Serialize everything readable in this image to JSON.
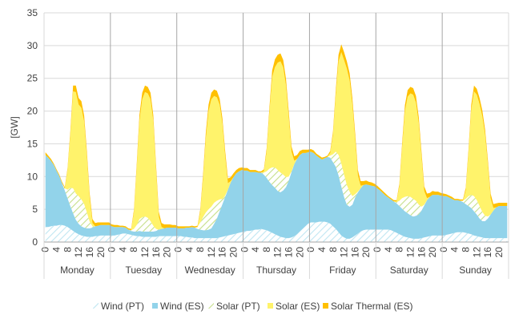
{
  "chart_data": {
    "type": "area",
    "title": "",
    "xlabel": "",
    "ylabel": "[GW]",
    "ylim": [
      0,
      35
    ],
    "yticks": [
      0,
      5,
      10,
      15,
      20,
      25,
      30,
      35
    ],
    "grid": true,
    "legend_position": "bottom",
    "hour_labels": [
      "0",
      "4",
      "8",
      "12",
      "16",
      "20"
    ],
    "days": [
      "Monday",
      "Tuesday",
      "Wednesday",
      "Thursday",
      "Friday",
      "Saturday",
      "Sunday"
    ],
    "colors": {
      "wind_pt": "#bfe6f2",
      "wind_es": "#92d3ea",
      "solar_pt": "#c5df8a",
      "solar_es": "#fff36b",
      "solar_thermal_es": "#ffc000",
      "grid": "#d9d9d9",
      "axis": "#a6a6a6"
    },
    "series": [
      {
        "name": "Wind (PT)",
        "pattern": "hatch",
        "values": [
          [
            2.3,
            2.3,
            2.4,
            2.5,
            2.5,
            2.6,
            2.6,
            2.5,
            2.3,
            2.0,
            1.7,
            1.4,
            1.2,
            1.0,
            0.9,
            0.8,
            0.8,
            0.8,
            0.9,
            0.9,
            1.0,
            1.0,
            1.0,
            1.0
          ],
          [
            1.0,
            1.0,
            1.1,
            1.2,
            1.3,
            1.3,
            1.2,
            1.1,
            1.0,
            0.9,
            0.9,
            0.8,
            0.8,
            0.8,
            0.8,
            0.8,
            0.8,
            0.9,
            0.9,
            0.9,
            0.9,
            0.9,
            0.9,
            0.9
          ],
          [
            0.9,
            0.9,
            0.8,
            0.8,
            0.7,
            0.7,
            0.6,
            0.6,
            0.6,
            0.6,
            0.6,
            0.6,
            0.6,
            0.6,
            0.6,
            0.7,
            0.8,
            0.9,
            1.0,
            1.1,
            1.2,
            1.3,
            1.4,
            1.5
          ],
          [
            1.6,
            1.7,
            1.7,
            1.8,
            1.9,
            1.9,
            2.0,
            1.9,
            1.8,
            1.6,
            1.4,
            1.2,
            1.0,
            0.8,
            0.7,
            0.6,
            0.6,
            0.7,
            0.9,
            1.2,
            1.6,
            2.0,
            2.4,
            2.8
          ],
          [
            3.0,
            3.0,
            3.0,
            3.1,
            3.1,
            3.1,
            3.0,
            2.8,
            2.4,
            2.0,
            1.5,
            1.0,
            0.7,
            0.5,
            0.5,
            0.7,
            1.0,
            1.3,
            1.6,
            1.8,
            1.9,
            1.9,
            1.9,
            1.9
          ],
          [
            1.9,
            1.9,
            1.9,
            1.9,
            1.9,
            1.8,
            1.6,
            1.4,
            1.2,
            1.0,
            0.8,
            0.7,
            0.6,
            0.5,
            0.5,
            0.5,
            0.6,
            0.7,
            0.8,
            0.9,
            1.0,
            1.0,
            1.0,
            1.0
          ],
          [
            1.0,
            1.1,
            1.2,
            1.3,
            1.4,
            1.5,
            1.5,
            1.5,
            1.4,
            1.3,
            1.2,
            1.0,
            0.9,
            0.8,
            0.7,
            0.6,
            0.6,
            0.6,
            0.6,
            0.6,
            0.6,
            0.6,
            0.6,
            0.6
          ]
        ]
      },
      {
        "name": "Wind (ES)",
        "pattern": "solid",
        "values": [
          [
            11.0,
            10.6,
            10.0,
            9.3,
            8.4,
            7.5,
            6.4,
            5.4,
            4.4,
            3.5,
            2.7,
            2.0,
            1.6,
            1.4,
            1.3,
            1.3,
            1.3,
            1.4,
            1.5,
            1.6,
            1.6,
            1.6,
            1.6,
            1.6
          ],
          [
            1.4,
            1.3,
            1.2,
            1.1,
            1.0,
            0.9,
            0.7,
            0.6,
            0.6,
            0.7,
            0.8,
            0.8,
            0.8,
            0.8,
            0.8,
            0.8,
            0.9,
            1.0,
            1.1,
            1.2,
            1.3,
            1.3,
            1.3,
            1.3
          ],
          [
            1.2,
            1.2,
            1.3,
            1.4,
            1.5,
            1.6,
            1.6,
            1.4,
            1.3,
            1.2,
            1.2,
            1.3,
            1.5,
            2.2,
            3.0,
            4.0,
            5.0,
            6.0,
            7.0,
            8.0,
            8.7,
            9.2,
            9.4,
            9.5
          ],
          [
            9.3,
            9.2,
            9.0,
            8.9,
            8.8,
            8.7,
            8.6,
            8.4,
            8.0,
            7.6,
            7.3,
            7.1,
            6.8,
            6.8,
            7.2,
            7.8,
            8.8,
            10.0,
            11.0,
            11.5,
            11.7,
            11.6,
            11.2,
            10.9
          ],
          [
            10.8,
            10.6,
            10.2,
            9.8,
            9.5,
            9.7,
            10.0,
            10.1,
            9.8,
            9.5,
            8.7,
            7.5,
            6.2,
            5.2,
            4.9,
            5.0,
            5.8,
            6.3,
            6.6,
            6.9,
            6.9,
            6.8,
            6.7,
            6.6
          ],
          [
            6.3,
            6.0,
            5.6,
            5.2,
            4.9,
            4.7,
            4.6,
            4.5,
            4.3,
            4.1,
            3.9,
            3.7,
            3.5,
            3.4,
            3.5,
            3.7,
            4.2,
            4.9,
            5.6,
            6.0,
            6.2,
            6.2,
            6.2,
            6.1
          ],
          [
            6.0,
            5.9,
            5.6,
            5.3,
            5.0,
            4.9,
            4.8,
            4.6,
            4.4,
            4.2,
            4.0,
            3.7,
            3.3,
            2.8,
            2.5,
            2.6,
            3.0,
            3.6,
            4.2,
            4.7,
            4.9,
            4.9,
            4.9,
            4.9
          ]
        ]
      },
      {
        "name": "Solar (PT)",
        "pattern": "hatch",
        "values": [
          [
            0,
            0,
            0,
            0,
            0,
            0,
            0,
            0.3,
            1.3,
            2.8,
            3.8,
            4.0,
            4.2,
            4.1,
            3.6,
            2.4,
            1.0,
            0.2,
            0,
            0,
            0,
            0,
            0,
            0
          ],
          [
            0,
            0,
            0,
            0,
            0,
            0,
            0,
            0.1,
            0.4,
            1.0,
            1.8,
            2.2,
            2.3,
            2.1,
            1.6,
            0.9,
            0.3,
            0,
            0,
            0,
            0,
            0,
            0,
            0
          ],
          [
            0,
            0,
            0,
            0,
            0,
            0,
            0,
            0.3,
            1.1,
            2.0,
            2.7,
            3.1,
            3.3,
            3.2,
            2.7,
            1.8,
            0.8,
            0.2,
            0,
            0,
            0,
            0,
            0,
            0
          ],
          [
            0,
            0,
            0,
            0,
            0,
            0,
            0,
            0.3,
            1.0,
            2.0,
            2.7,
            3.1,
            3.2,
            3.0,
            2.4,
            1.5,
            0.6,
            0.1,
            0,
            0,
            0,
            0,
            0,
            0
          ],
          [
            0,
            0,
            0,
            0,
            0,
            0,
            0,
            0.3,
            1.2,
            2.3,
            3.1,
            3.5,
            3.4,
            3.0,
            2.3,
            1.3,
            0.5,
            0.1,
            0,
            0,
            0,
            0,
            0,
            0
          ],
          [
            0,
            0,
            0,
            0,
            0,
            0,
            0,
            0.2,
            0.8,
            1.6,
            2.2,
            2.6,
            2.8,
            2.7,
            2.3,
            1.5,
            0.6,
            0.1,
            0,
            0,
            0,
            0,
            0,
            0
          ],
          [
            0,
            0,
            0,
            0,
            0,
            0,
            0,
            0.2,
            0.8,
            1.5,
            2.0,
            2.3,
            2.2,
            1.9,
            1.4,
            0.8,
            0.3,
            0,
            0,
            0,
            0,
            0,
            0,
            0
          ]
        ]
      },
      {
        "name": "Solar (ES)",
        "pattern": "solid",
        "values": [
          [
            0,
            0,
            0,
            0,
            0,
            0,
            0,
            0,
            3.0,
            8.0,
            14.8,
            15.5,
            14.0,
            14.0,
            12.6,
            8.5,
            3.6,
            0.5,
            0,
            0,
            0,
            0,
            0,
            0
          ],
          [
            0,
            0,
            0,
            0,
            0,
            0,
            0,
            0,
            2.5,
            8.5,
            15.0,
            18.0,
            19.0,
            19.0,
            18.6,
            16.0,
            9.0,
            2.0,
            0.3,
            0,
            0,
            0,
            0,
            0
          ],
          [
            0,
            0,
            0,
            0,
            0,
            0,
            0,
            0,
            1.6,
            5.8,
            11.3,
            15.0,
            16.4,
            16.3,
            15.8,
            14.5,
            11.5,
            6.0,
            1.0,
            0.2,
            0,
            0,
            0,
            0
          ],
          [
            0,
            0,
            0,
            0,
            0,
            0,
            0,
            0.2,
            3.0,
            8.5,
            13.8,
            15.3,
            16.4,
            17.0,
            16.4,
            14.0,
            9.0,
            3.0,
            0.5,
            0,
            0,
            0,
            0,
            0
          ],
          [
            0,
            0,
            0,
            0,
            0,
            0,
            0,
            0.4,
            3.0,
            8.6,
            14.3,
            17.0,
            17.5,
            17.8,
            17.0,
            14.0,
            8.5,
            2.5,
            0.4,
            0,
            0,
            0,
            0,
            0
          ],
          [
            0,
            0,
            0,
            0,
            0,
            0,
            0,
            0.1,
            2.2,
            7.7,
            13.1,
            15.2,
            15.8,
            15.9,
            15.0,
            12.5,
            7.6,
            2.1,
            0.3,
            0,
            0,
            0,
            0,
            0
          ],
          [
            0,
            0,
            0,
            0,
            0,
            0,
            0,
            0,
            1.3,
            6.5,
            13.0,
            16.0,
            16.1,
            15.6,
            14.6,
            12.4,
            8.0,
            2.5,
            0.4,
            0,
            0,
            0,
            0,
            0
          ]
        ]
      },
      {
        "name": "Solar Thermal (ES)",
        "pattern": "solid",
        "values": [
          [
            0.4,
            0.3,
            0.3,
            0.2,
            0.2,
            0.2,
            0.2,
            0.2,
            0.3,
            0.6,
            0.9,
            1.0,
            1.0,
            1.0,
            0.9,
            0.8,
            0.7,
            0.6,
            0.5,
            0.5,
            0.4,
            0.4,
            0.4,
            0.4
          ],
          [
            0.3,
            0.3,
            0.3,
            0.2,
            0.2,
            0.2,
            0.2,
            0.2,
            0.4,
            0.7,
            0.9,
            1.0,
            1.0,
            1.0,
            1.0,
            0.9,
            0.8,
            0.7,
            0.6,
            0.6,
            0.5,
            0.5,
            0.4,
            0.4
          ],
          [
            0.3,
            0.3,
            0.3,
            0.2,
            0.2,
            0.2,
            0.2,
            0.2,
            0.4,
            0.7,
            0.9,
            1.0,
            1.0,
            1.0,
            1.0,
            0.9,
            0.8,
            0.8,
            0.7,
            0.6,
            0.6,
            0.5,
            0.5,
            0.4
          ],
          [
            0.4,
            0.4,
            0.3,
            0.3,
            0.3,
            0.2,
            0.2,
            0.3,
            0.5,
            0.8,
            1.0,
            1.2,
            1.2,
            1.2,
            1.1,
            1.0,
            0.9,
            0.8,
            0.7,
            0.6,
            0.6,
            0.5,
            0.5,
            0.4
          ],
          [
            0.4,
            0.4,
            0.3,
            0.3,
            0.3,
            0.2,
            0.2,
            0.3,
            0.5,
            0.8,
            1.0,
            1.2,
            1.2,
            1.1,
            1.1,
            1.0,
            0.9,
            0.8,
            0.7,
            0.6,
            0.6,
            0.5,
            0.5,
            0.4
          ],
          [
            0.4,
            0.3,
            0.3,
            0.3,
            0.2,
            0.2,
            0.2,
            0.2,
            0.4,
            0.7,
            0.9,
            1.0,
            1.0,
            1.0,
            1.0,
            0.9,
            0.8,
            0.7,
            0.7,
            0.6,
            0.6,
            0.5,
            0.5,
            0.4
          ],
          [
            0.4,
            0.3,
            0.3,
            0.3,
            0.2,
            0.2,
            0.2,
            0.2,
            0.4,
            0.6,
            0.8,
            0.9,
            0.9,
            0.9,
            0.9,
            0.8,
            0.7,
            0.7,
            0.6,
            0.6,
            0.5,
            0.5,
            0.5,
            0.5
          ]
        ]
      }
    ]
  }
}
